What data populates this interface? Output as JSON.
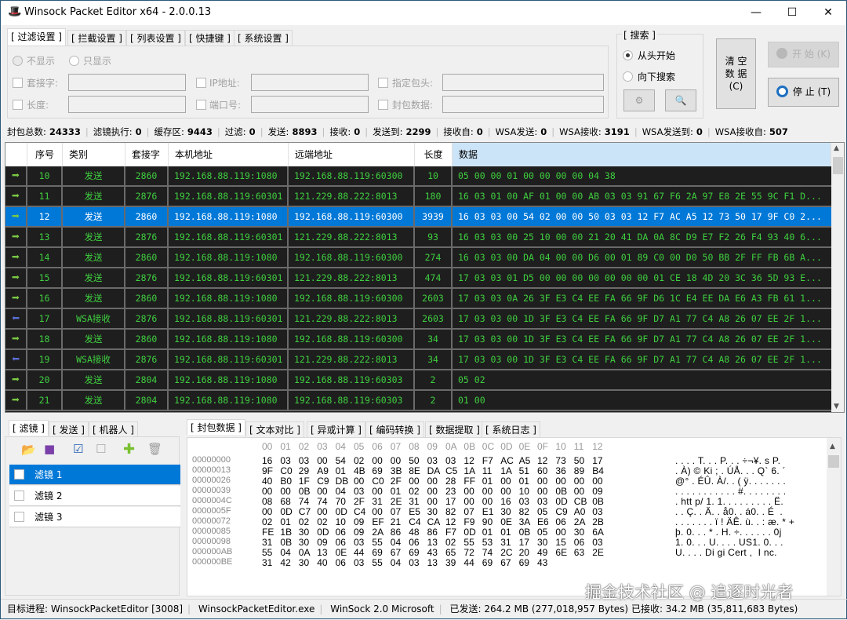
{
  "window": {
    "title": "Winsock Packet Editor x64 - 2.0.0.13",
    "icon": "hat-icon",
    "controls": {
      "minimize": "—",
      "maximize": "☐",
      "close": "✕"
    }
  },
  "top_tabs": [
    {
      "label": "[ 过滤设置 ]",
      "active": true
    },
    {
      "label": "[ 拦截设置 ]"
    },
    {
      "label": "[ 列表设置 ]"
    },
    {
      "label": "[ 快捷键 ]"
    },
    {
      "label": "[ 系统设置 ]"
    }
  ],
  "filter": {
    "radio_hide": "不显示",
    "radio_show_only": "只显示",
    "socket": "套接字:",
    "ip": "IP地址:",
    "header": "指定包头:",
    "length": "长度:",
    "port": "端口号:",
    "packet_data": "封包数据:"
  },
  "search": {
    "group": "[ 搜索 ]",
    "from_start": "从头开始",
    "search_down": "向下搜索",
    "settings_icon": "gear-icon",
    "search_icon": "magnifier-icon"
  },
  "buttons": {
    "clear_l1": "清 空",
    "clear_l2": "数 据",
    "clear_l3": "(C)",
    "start": "开 始 (K)",
    "stop": "停 止 (T)"
  },
  "stats": [
    {
      "label": "封包总数:",
      "value": "24333"
    },
    {
      "label": "滤镜执行:",
      "value": "0"
    },
    {
      "label": "缓存区:",
      "value": "9443"
    },
    {
      "label": "过滤:",
      "value": "0"
    },
    {
      "label": "发送:",
      "value": "8893"
    },
    {
      "label": "接收:",
      "value": "0"
    },
    {
      "label": "发送到:",
      "value": "2299"
    },
    {
      "label": "接收自:",
      "value": "0"
    },
    {
      "label": "WSA发送:",
      "value": "0"
    },
    {
      "label": "WSA接收:",
      "value": "3191"
    },
    {
      "label": "WSA发送到:",
      "value": "0"
    },
    {
      "label": "WSA接收自:",
      "value": "507"
    }
  ],
  "packet_table": {
    "columns": [
      "",
      "序号",
      "类别",
      "套接字",
      "本机地址",
      "远端地址",
      "长度",
      "数据"
    ],
    "selected_index": 2,
    "rows": [
      {
        "dir": "send",
        "no": "10",
        "type": "发送",
        "socket": "2860",
        "local": "192.168.88.119:1080",
        "remote": "192.168.88.119:60300",
        "len": "10",
        "data": "05 00 00 01 00 00 00 00 04 38"
      },
      {
        "dir": "send",
        "no": "11",
        "type": "发送",
        "socket": "2876",
        "local": "192.168.88.119:60301",
        "remote": "121.229.88.222:8013",
        "len": "180",
        "data": "16 03 01 00 AF 01 00 00 AB 03 03 91 67 F6 2A 97 E8 2E 55 9C F1 D..."
      },
      {
        "dir": "send",
        "no": "12",
        "type": "发送",
        "socket": "2860",
        "local": "192.168.88.119:1080",
        "remote": "192.168.88.119:60300",
        "len": "3939",
        "data": "16 03 03 00 54 02 00 00 50 03 03 12 F7 AC A5 12 73 50 17 9F C0 2..."
      },
      {
        "dir": "send",
        "no": "13",
        "type": "发送",
        "socket": "2876",
        "local": "192.168.88.119:60301",
        "remote": "121.229.88.222:8013",
        "len": "93",
        "data": "16 03 03 00 25 10 00 00 21 20 41 DA 0A 8C D9 E7 F2 26 F4 93 40 6..."
      },
      {
        "dir": "send",
        "no": "14",
        "type": "发送",
        "socket": "2860",
        "local": "192.168.88.119:1080",
        "remote": "192.168.88.119:60300",
        "len": "274",
        "data": "16 03 03 00 DA 04 00 00 D6 00 01 89 C0 00 D0 50 BB 2F FF FB 6B A..."
      },
      {
        "dir": "send",
        "no": "15",
        "type": "发送",
        "socket": "2876",
        "local": "192.168.88.119:60301",
        "remote": "121.229.88.222:8013",
        "len": "474",
        "data": "17 03 03 01 D5 00 00 00 00 00 00 00 01 CE 18 4D 20 3C 36 5D 93 E..."
      },
      {
        "dir": "send",
        "no": "16",
        "type": "发送",
        "socket": "2860",
        "local": "192.168.88.119:1080",
        "remote": "192.168.88.119:60300",
        "len": "2603",
        "data": "17 03 03 0A 26 3F E3 C4 EE FA 66 9F D6 1C E4 EE DA E6 A3 FB 61 1..."
      },
      {
        "dir": "recv",
        "no": "17",
        "type": "WSA接收",
        "socket": "2876",
        "local": "192.168.88.119:60301",
        "remote": "121.229.88.222:8013",
        "len": "2603",
        "data": "17 03 03 00 1D 3F E3 C4 EE FA 66 9F D7 A1 77 C4 A8 26 07 EE 2F 1..."
      },
      {
        "dir": "send",
        "no": "18",
        "type": "发送",
        "socket": "2860",
        "local": "192.168.88.119:1080",
        "remote": "192.168.88.119:60300",
        "len": "34",
        "data": "17 03 03 00 1D 3F E3 C4 EE FA 66 9F D7 A1 77 C4 A8 26 07 EE 2F 1..."
      },
      {
        "dir": "recv",
        "no": "19",
        "type": "WSA接收",
        "socket": "2876",
        "local": "192.168.88.119:60301",
        "remote": "121.229.88.222:8013",
        "len": "34",
        "data": "17 03 03 00 1D 3F E3 C4 EE FA 66 9F D7 A1 77 C4 A8 26 07 EE 2F 1..."
      },
      {
        "dir": "send",
        "no": "20",
        "type": "发送",
        "socket": "2804",
        "local": "192.168.88.119:1080",
        "remote": "192.168.88.119:60303",
        "len": "2",
        "data": "05 02"
      },
      {
        "dir": "send",
        "no": "21",
        "type": "发送",
        "socket": "2804",
        "local": "192.168.88.119:1080",
        "remote": "192.168.88.119:60303",
        "len": "2",
        "data": "01 00"
      }
    ]
  },
  "left_tabs": [
    {
      "label": "[ 滤镜 ]",
      "active": true
    },
    {
      "label": "[ 发送 ]"
    },
    {
      "label": "[ 机器人 ]"
    }
  ],
  "left_toolbar": [
    "open-folder-icon",
    "save-icon",
    "check-all-icon",
    "uncheck-all-icon",
    "add-icon",
    "delete-icon"
  ],
  "filters": [
    {
      "label": "滤镜 1",
      "selected": true
    },
    {
      "label": "滤镜 2"
    },
    {
      "label": "滤镜 3"
    }
  ],
  "right_tabs": [
    {
      "label": "[ 封包数据 ]",
      "active": true
    },
    {
      "label": "[ 文本对比 ]"
    },
    {
      "label": "[ 异或计算 ]"
    },
    {
      "label": "[ 编码转换 ]"
    },
    {
      "label": "[ 数据提取 ]"
    },
    {
      "label": "[ 系统日志 ]"
    }
  ],
  "hex": {
    "header": [
      "00",
      "01",
      "02",
      "03",
      "04",
      "05",
      "06",
      "07",
      "08",
      "09",
      "0A",
      "0B",
      "0C",
      "0D",
      "0E",
      "0F",
      "10",
      "11",
      "12"
    ],
    "rows": [
      {
        "offset": "00000000",
        "bytes": "16 03 03 00 54 02 00 00 50 03 03 12 F7 AC A5 12 73 50 17",
        "ascii": ". . . . T. . . P. . . ÷¬¥. s P."
      },
      {
        "offset": "00000013",
        "bytes": "9F C0 29 A9 01 4B 69 3B 8E DA C5 1A 11 1A 51 60 36 89 B4",
        "ascii": ". À) © Ki ; . ÚÅ. . . Q` 6. ´"
      },
      {
        "offset": "00000026",
        "bytes": "40 B0 1F C9 DB 00 C0 2F 00 00 28 FF 01 00 01 00 00 00 00",
        "ascii": "@° . ÉÛ. À/. . ( ÿ. . . . . . ."
      },
      {
        "offset": "00000039",
        "bytes": "00 00 0B 00 04 03 00 01 02 00 23 00 00 00 10 00 0B 00 09",
        "ascii": ". . . . . . . . . . . #. . . . . . . ."
      },
      {
        "offset": "0000004C",
        "bytes": "08 68 74 74 70 2F 31 2E 31 00 17 00 00 16 03 03 0D CB 0B",
        "ascii": ". htt p/ 1. 1. . . . . . . . . Ë."
      },
      {
        "offset": "0000005F",
        "bytes": "00 0D C7 00 0D C4 00 07 E5 30 82 07 E1 30 82 05 C9 A0 03",
        "ascii": ". . Ç. . Ä. . å0. . á0. . É  ."
      },
      {
        "offset": "00000072",
        "bytes": "02 01 02 02 10 09 EF 21 C4 CA 12 F9 90 0E 3A E6 06 2A 2B",
        "ascii": ". . . . . . . ï ! ÄÊ. ù. . : æ. * +"
      },
      {
        "offset": "00000085",
        "bytes": "FE 1B 30 0D 06 09 2A 86 48 86 F7 0D 01 01 0B 05 00 30 6A",
        "ascii": "þ. 0. . . * . H. ÷. . . . . . 0j"
      },
      {
        "offset": "00000098",
        "bytes": "31 0B 30 09 06 03 55 04 06 13 02 55 53 31 17 30 15 06 03",
        "ascii": "1. 0. . . U. . . . US1. 0. . ."
      },
      {
        "offset": "000000AB",
        "bytes": "55 04 0A 13 0E 44 69 67 69 43 65 72 74 2C 20 49 6E 63 2E",
        "ascii": "U. . . . Di gi Cert ,  I nc."
      },
      {
        "offset": "000000BE",
        "bytes": "31 42 30 40 06 03 55 04 03 13 39 44 69 67 69 43",
        "ascii": ""
      }
    ]
  },
  "statusbar": {
    "process": "目标进程: WinsockPacketEditor [3008]",
    "exe": "WinsockPacketEditor.exe",
    "winsock": "WinSock 2.0 Microsoft",
    "sent": "已发送: 264.2 MB (277,018,957 Bytes)",
    "received": "已接收: 34.2 MB (35,811,683 Bytes)"
  },
  "watermark": "掘金技术社区 @ 追逐时光者",
  "colors": {
    "selection": "#0078d7",
    "grid_bg": "#1e1e1e",
    "grid_text": "#3fcf3f",
    "send_arrow": "#7ac943",
    "recv_arrow": "#5b6fd6"
  }
}
